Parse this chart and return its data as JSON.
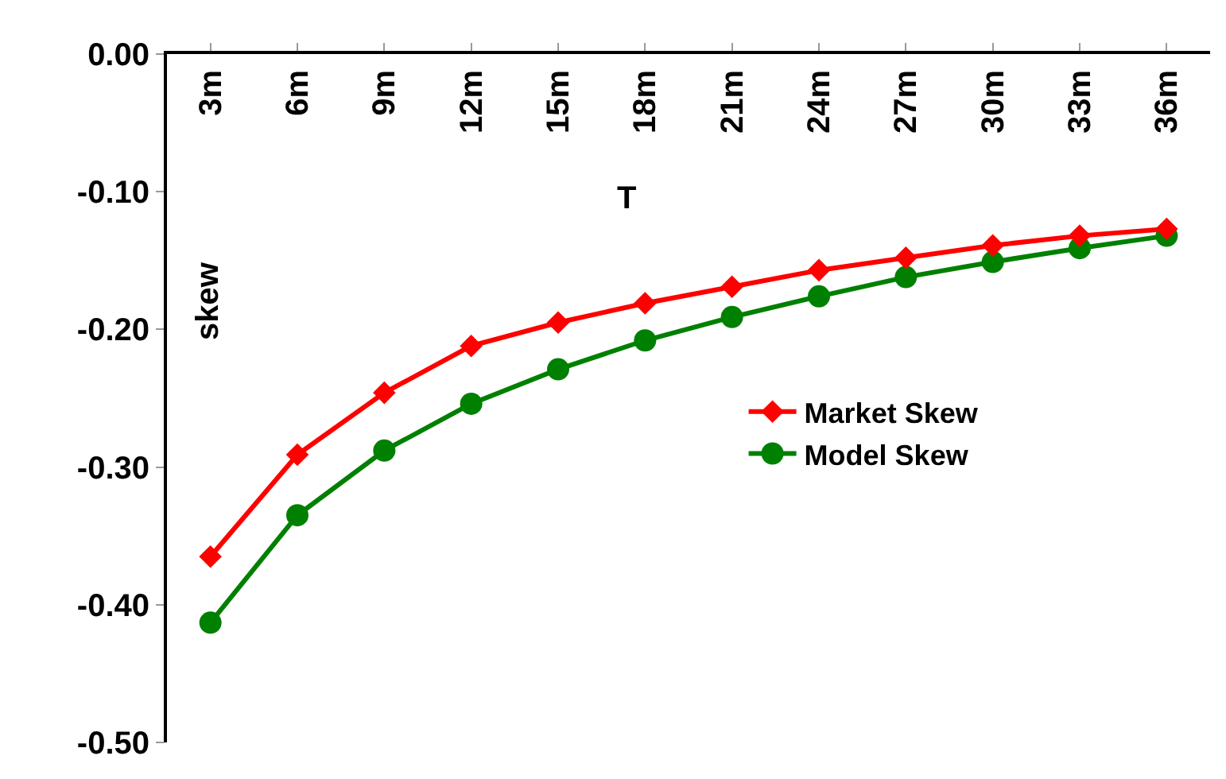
{
  "chart_data": {
    "type": "line",
    "xlabel": "T",
    "ylabel": "skew",
    "categories": [
      "3m",
      "6m",
      "9m",
      "12m",
      "15m",
      "18m",
      "21m",
      "24m",
      "27m",
      "30m",
      "33m",
      "36m"
    ],
    "series": [
      {
        "name": "Market Skew",
        "color": "#ff0000",
        "marker": "diamond",
        "values": [
          -0.365,
          -0.291,
          -0.246,
          -0.212,
          -0.195,
          -0.181,
          -0.169,
          -0.157,
          -0.148,
          -0.139,
          -0.132,
          -0.127
        ]
      },
      {
        "name": "Model Skew",
        "color": "#008000",
        "marker": "circle",
        "values": [
          -0.413,
          -0.335,
          -0.288,
          -0.254,
          -0.229,
          -0.208,
          -0.191,
          -0.176,
          -0.162,
          -0.151,
          -0.141,
          -0.132
        ]
      }
    ],
    "ylim": [
      -0.5,
      0
    ],
    "yticks": [
      {
        "value": 0,
        "label": "0.00"
      },
      {
        "value": -0.1,
        "label": "-0.10"
      },
      {
        "value": -0.2,
        "label": "-0.20"
      },
      {
        "value": -0.3,
        "label": "-0.30"
      },
      {
        "value": -0.4,
        "label": "-0.40"
      },
      {
        "value": -0.5,
        "label": "-0.50"
      }
    ],
    "grid": false,
    "legend": "right",
    "line_style": "solid"
  }
}
